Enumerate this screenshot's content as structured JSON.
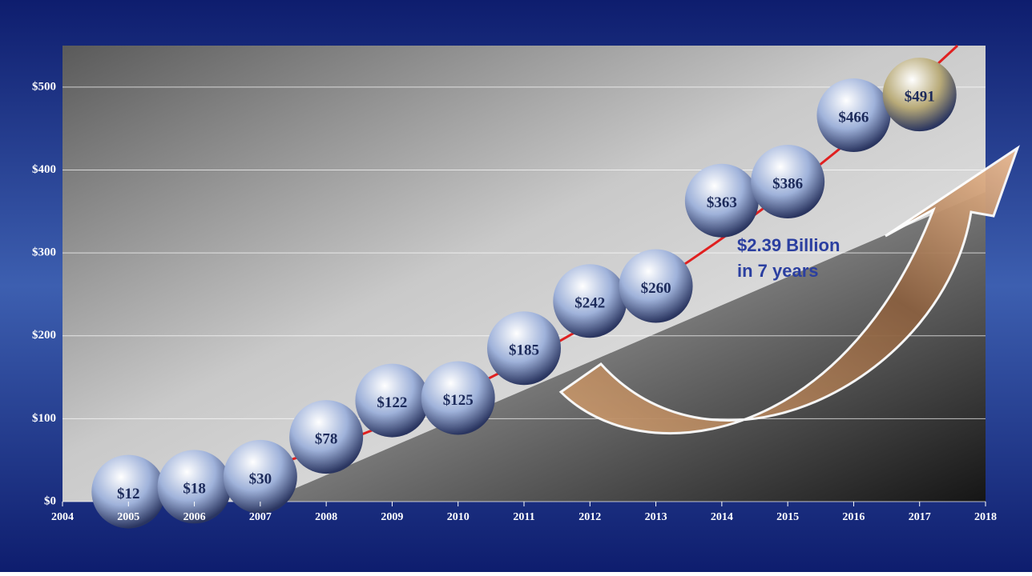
{
  "chart_data": {
    "type": "bubble",
    "x": [
      2005,
      2006,
      2007,
      2008,
      2009,
      2010,
      2011,
      2012,
      2013,
      2014,
      2015,
      2016,
      2017
    ],
    "values": [
      12,
      18,
      30,
      78,
      122,
      125,
      185,
      242,
      260,
      363,
      386,
      466,
      491
    ],
    "value_labels": [
      "$12",
      "$18",
      "$30",
      "$78",
      "$122",
      "$125",
      "$185",
      "$242",
      "$260",
      "$363",
      "$386",
      "$466",
      "$491"
    ],
    "colors": [
      "#9fb2da",
      "#9fb2da",
      "#9fb2da",
      "#9fb2da",
      "#9fb2da",
      "#9fb2da",
      "#9fb2da",
      "#9fb2da",
      "#9fb2da",
      "#9fb2da",
      "#9fb2da",
      "#9fb2da",
      "#b8aa78"
    ],
    "xlim": [
      2004,
      2018
    ],
    "xticks": [
      2004,
      2005,
      2006,
      2007,
      2008,
      2009,
      2010,
      2011,
      2012,
      2013,
      2014,
      2015,
      2016,
      2017,
      2018
    ],
    "ylim": [
      0,
      550
    ],
    "yticks": [
      {
        "value": 0,
        "label": "$0"
      },
      {
        "value": 100,
        "label": "$100"
      },
      {
        "value": 200,
        "label": "$200"
      },
      {
        "value": 300,
        "label": "$300"
      },
      {
        "value": 400,
        "label": "$400"
      },
      {
        "value": 500,
        "label": "$500"
      }
    ],
    "grid": true,
    "annotation": [
      "$2.39 Billion",
      "in 7 years"
    ]
  }
}
